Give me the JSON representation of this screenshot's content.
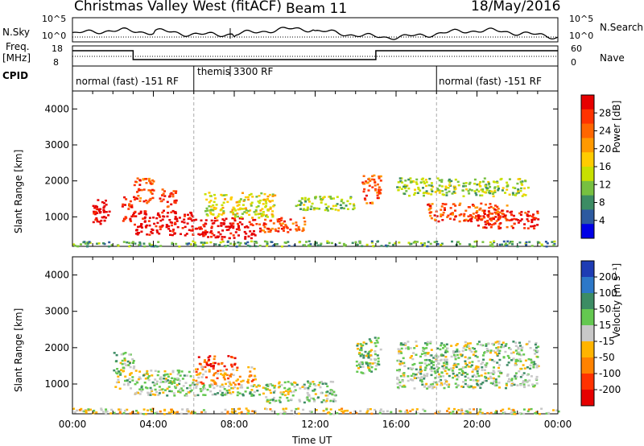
{
  "header": {
    "site": "Christmas Valley West (fitACF)",
    "beam": "Beam 11",
    "date": "18/May/2016"
  },
  "strip_labels": {
    "nsky": "N.Sky",
    "nsky_top": "10^5",
    "nsky_bottom": "10^0",
    "nsearch": "N.Search",
    "nsearch_top": "10^5",
    "nsearch_bottom": "10^0",
    "freq_line1": "Freq.",
    "freq_line2": "[MHz]",
    "freq_top": "18",
    "freq_bottom": "8",
    "nave": "Nave",
    "nave_top": "60",
    "nave_bottom": "0",
    "cpid": "CPID"
  },
  "cpid_modes": [
    {
      "label": "normal (fast) -151 RF",
      "start_hour": 0,
      "end_hour": 6
    },
    {
      "label": "themis 3300 RF",
      "start_hour": 6,
      "end_hour": 18
    },
    {
      "label": "normal (fast) -151 RF",
      "start_hour": 18,
      "end_hour": 24
    }
  ],
  "chart_data": [
    {
      "type": "heatmap",
      "name": "power",
      "ylabel": "Slant Range [km]",
      "xlim": [
        0,
        24
      ],
      "ylim": [
        180,
        4500
      ],
      "yticks": [
        1000,
        2000,
        3000,
        4000
      ],
      "colorbar": {
        "label": "Power [dB]",
        "ticks": [
          "28",
          "24",
          "20",
          "16",
          "12",
          "8",
          "4"
        ],
        "colors": [
          "#e60000",
          "#ff3300",
          "#ff6600",
          "#ff9900",
          "#ffcc00",
          "#c8e000",
          "#77c040",
          "#3c8c64",
          "#2d5aa0",
          "#0000e6"
        ]
      },
      "regions": [
        {
          "x": [
            0.9,
            1.8
          ],
          "y": [
            800,
            1500
          ],
          "level": 0
        },
        {
          "x": [
            2.4,
            3.0
          ],
          "y": [
            900,
            1600
          ],
          "level": 1
        },
        {
          "x": [
            3.0,
            4.0
          ],
          "y": [
            1400,
            2100
          ],
          "level": 2
        },
        {
          "x": [
            4.2,
            5.1
          ],
          "y": [
            1300,
            1800
          ],
          "level": 1
        },
        {
          "x": [
            3.0,
            6.0
          ],
          "y": [
            500,
            1200
          ],
          "level": 0
        },
        {
          "x": [
            6.0,
            9.0
          ],
          "y": [
            400,
            1000
          ],
          "level": 0
        },
        {
          "x": [
            6.5,
            10.0
          ],
          "y": [
            1000,
            1700
          ],
          "level": 5
        },
        {
          "x": [
            9.0,
            11.5
          ],
          "y": [
            600,
            1000
          ],
          "level": 2
        },
        {
          "x": [
            11.0,
            14.0
          ],
          "y": [
            1200,
            1600
          ],
          "level": 6
        },
        {
          "x": [
            14.3,
            15.2
          ],
          "y": [
            1400,
            2200
          ],
          "level": 2
        },
        {
          "x": [
            16.0,
            22.5
          ],
          "y": [
            1600,
            2100
          ],
          "level": 6
        },
        {
          "x": [
            17.5,
            21.5
          ],
          "y": [
            900,
            1400
          ],
          "level": 2
        },
        {
          "x": [
            20.0,
            23.0
          ],
          "y": [
            700,
            1200
          ],
          "level": 1
        },
        {
          "x": [
            0.0,
            24.0
          ],
          "y": [
            200,
            350
          ],
          "level": 7
        }
      ]
    },
    {
      "type": "heatmap",
      "name": "velocity",
      "xlabel": "Time UT",
      "ylabel": "Slant Range [km]",
      "xlim": [
        0,
        24
      ],
      "ylim": [
        180,
        4500
      ],
      "yticks": [
        1000,
        2000,
        3000,
        4000
      ],
      "xticks": [
        "00:00",
        "04:00",
        "08:00",
        "12:00",
        "16:00",
        "20:00",
        "00:00"
      ],
      "colorbar": {
        "label": "Velocity [m s⁻¹]",
        "ticks": [
          "200",
          "100",
          "50",
          "15",
          "-15",
          "-50",
          "-100",
          "-200"
        ],
        "colors": [
          "#1e3cb4",
          "#2d78c8",
          "#3c8c64",
          "#64c850",
          "#c8c8c8",
          "#ffb400",
          "#ff8200",
          "#ff3200",
          "#e60000"
        ]
      },
      "regions": [
        {
          "x": [
            2.0,
            3.0
          ],
          "y": [
            900,
            1900
          ],
          "level": 4
        },
        {
          "x": [
            3.0,
            6.0
          ],
          "y": [
            700,
            1400
          ],
          "level": 4
        },
        {
          "x": [
            6.0,
            9.0
          ],
          "y": [
            1000,
            1500
          ],
          "level": 6
        },
        {
          "x": [
            6.2,
            8.0
          ],
          "y": [
            1500,
            1800
          ],
          "level": 8
        },
        {
          "x": [
            6.0,
            9.5
          ],
          "y": [
            700,
            1000
          ],
          "level": 4
        },
        {
          "x": [
            9.5,
            13.0
          ],
          "y": [
            500,
            1100
          ],
          "level": 4
        },
        {
          "x": [
            14.0,
            15.2
          ],
          "y": [
            1300,
            2300
          ],
          "level": 4
        },
        {
          "x": [
            16.0,
            23.0
          ],
          "y": [
            900,
            2200
          ],
          "level": 4
        },
        {
          "x": [
            0.0,
            24.0
          ],
          "y": [
            200,
            350
          ],
          "level": 5
        }
      ]
    }
  ]
}
